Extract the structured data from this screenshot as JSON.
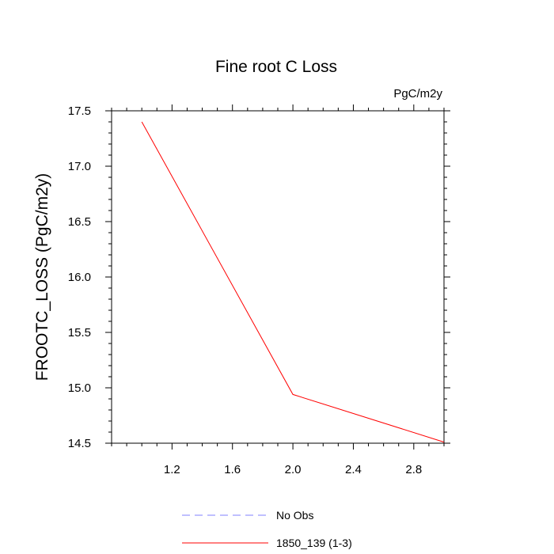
{
  "chart_data": {
    "type": "line",
    "title": "Fine root C Loss",
    "units_label": "PgC/m2y",
    "xlabel": "",
    "ylabel": "FROOTC_LOSS  (PgC/m2y)",
    "xlim": [
      0.8,
      3.0
    ],
    "ylim": [
      14.5,
      17.5
    ],
    "x_ticks": [
      1.2,
      1.6,
      2.0,
      2.4,
      2.8
    ],
    "x_tick_labels": [
      "1.2",
      "1.6",
      "2.0",
      "2.4",
      "2.8"
    ],
    "y_ticks": [
      14.5,
      15.0,
      15.5,
      16.0,
      16.5,
      17.0,
      17.5
    ],
    "y_tick_labels": [
      "14.5",
      "15.0",
      "15.5",
      "16.0",
      "16.5",
      "17.0",
      "17.5"
    ],
    "legend_position": "bottom",
    "series": [
      {
        "name": "No Obs",
        "color": "#8080ff",
        "style": "dashed",
        "x": [],
        "y": []
      },
      {
        "name": "1850_139 (1-3)",
        "color": "#ff0000",
        "style": "solid",
        "x": [
          1.0,
          2.0,
          3.0
        ],
        "y": [
          17.4,
          14.94,
          14.51
        ]
      }
    ]
  }
}
